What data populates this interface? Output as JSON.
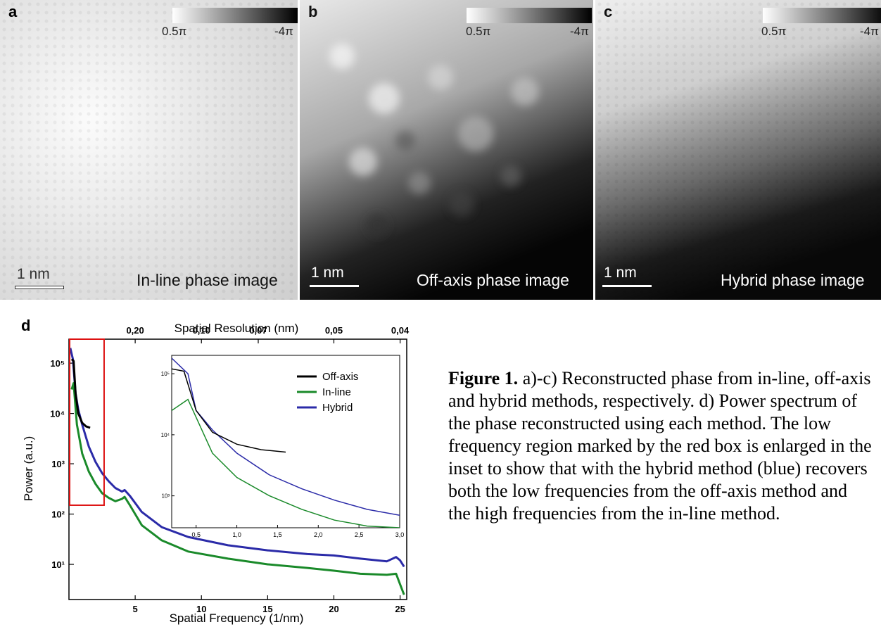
{
  "panels": [
    {
      "letter": "a",
      "colorbar_min": "0.5π",
      "colorbar_max": "-4π",
      "scale_bar": "1 nm",
      "caption": "In-line phase image"
    },
    {
      "letter": "b",
      "colorbar_min": "0.5π",
      "colorbar_max": "-4π",
      "scale_bar": "1 nm",
      "caption": "Off-axis phase image"
    },
    {
      "letter": "c",
      "colorbar_min": "0.5π",
      "colorbar_max": "-4π",
      "scale_bar": "1 nm",
      "caption": "Hybrid phase image"
    }
  ],
  "colors": {
    "off_axis": "#000000",
    "in_line": "#1a8a2a",
    "hybrid": "#2b2ba8",
    "highlight_box": "#dd1111"
  },
  "chart_data": {
    "type": "line",
    "panel_letter": "d",
    "xlabel": "Spatial Frequency (1/nm)",
    "x2label": "Spatial Resolution (nm)",
    "ylabel": "Power (a.u.)",
    "xlim": [
      0,
      25.5
    ],
    "ylim": [
      2,
      300000
    ],
    "yscale": "log",
    "xticks": [
      "5",
      "10",
      "15",
      "20",
      "25"
    ],
    "yticks": [
      "10⁵",
      "10⁴",
      "10³",
      "10²",
      "10¹"
    ],
    "top_ticks": [
      {
        "freq": 5,
        "label": "0,20"
      },
      {
        "freq": 10,
        "label": "0,10"
      },
      {
        "freq": 14.29,
        "label": "0,07"
      },
      {
        "freq": 20,
        "label": "0,05"
      },
      {
        "freq": 25,
        "label": "0,04"
      }
    ],
    "legend_position": "inset top-right",
    "highlight_region": {
      "x": [
        0,
        2.6
      ],
      "y": [
        150,
        300000
      ]
    },
    "series": [
      {
        "name": "Off-axis",
        "x": [
          0.2,
          0.35,
          0.5,
          0.7,
          1.0,
          1.3,
          1.6
        ],
        "values": [
          120000,
          110000,
          25000,
          10000,
          6500,
          5500,
          5200
        ]
      },
      {
        "name": "In-line",
        "x": [
          0.2,
          0.35,
          0.6,
          1.0,
          1.5,
          2.0,
          2.5,
          3.0,
          3.5,
          4.0,
          4.2,
          4.6,
          5.5,
          7,
          9,
          12,
          15,
          18,
          20,
          22,
          24,
          24.7,
          25.0,
          25.3
        ],
        "values": [
          30000,
          40000,
          6000,
          1600,
          700,
          400,
          260,
          210,
          180,
          200,
          220,
          150,
          60,
          30,
          18,
          13,
          10,
          8.5,
          7.5,
          6.5,
          6.2,
          6.5,
          4,
          2.5
        ]
      },
      {
        "name": "Hybrid",
        "x": [
          0.1,
          0.3,
          0.5,
          0.7,
          1.0,
          1.5,
          2.0,
          2.5,
          3.0,
          3.5,
          4.0,
          4.2,
          4.6,
          5.5,
          7,
          9,
          12,
          15,
          18,
          20,
          22,
          24,
          24.7,
          25.0,
          25.3
        ],
        "values": [
          200000,
          120000,
          25000,
          12000,
          6000,
          2200,
          1100,
          650,
          450,
          330,
          280,
          300,
          230,
          110,
          55,
          35,
          24,
          19,
          16,
          15,
          13,
          11.5,
          14,
          12,
          9
        ]
      }
    ],
    "inset": {
      "xlim": [
        0.2,
        3.0
      ],
      "ylim": [
        300,
        200000
      ],
      "xticks": [
        "0,5",
        "1,0",
        "1,5",
        "2,0",
        "2,5",
        "3,0"
      ],
      "yticks": [
        "10⁵",
        "10⁴",
        "10³"
      ],
      "series": [
        {
          "name": "Off-axis",
          "x": [
            0.2,
            0.35,
            0.5,
            0.7,
            1.0,
            1.3,
            1.6
          ],
          "values": [
            120000,
            110000,
            25000,
            11000,
            7000,
            5700,
            5200
          ]
        },
        {
          "name": "In-line",
          "x": [
            0.2,
            0.4,
            0.7,
            1.0,
            1.4,
            1.8,
            2.2,
            2.6,
            3.0
          ],
          "values": [
            25000,
            38000,
            5000,
            2000,
            1000,
            600,
            400,
            320,
            300
          ]
        },
        {
          "name": "Hybrid",
          "x": [
            0.2,
            0.4,
            0.5,
            0.7,
            1.0,
            1.4,
            1.8,
            2.2,
            2.6,
            3.0
          ],
          "values": [
            180000,
            100000,
            25000,
            12000,
            5000,
            2200,
            1300,
            850,
            600,
            480
          ]
        }
      ]
    }
  },
  "caption": {
    "label": "Figure 1.",
    "text": " a)-c) Reconstructed phase from in-line, off-axis and hybrid methods, respectively. d) Power spectrum of the phase reconstructed using each method. The low frequency region marked by the red box is enlarged in the inset to show that with the hybrid method (blue) recovers both the low frequencies from the off-axis method and the high frequencies from the in-line method."
  }
}
